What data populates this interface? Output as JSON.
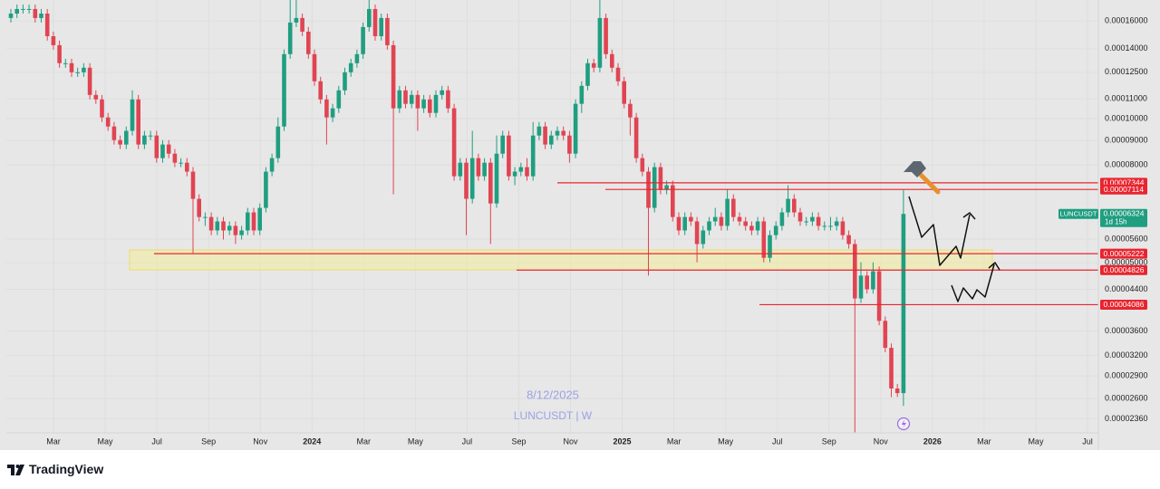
{
  "chart_data": {
    "type": "candlestick",
    "log_scale": true,
    "grid": true,
    "up_color": "#1f9e80",
    "down_color": "#e04452",
    "level_color": "#e8242f",
    "ylim": [
      2.03e-05,
      0.000177
    ],
    "yticks": [
      {
        "value": 0.00016,
        "label": "0.00016000"
      },
      {
        "value": 0.00014,
        "label": "0.00014000"
      },
      {
        "value": 0.000125,
        "label": "0.00012500"
      },
      {
        "value": 0.00011,
        "label": "0.00011000"
      },
      {
        "value": 0.0001,
        "label": "0.00010000"
      },
      {
        "value": 9e-05,
        "label": "0.00009000"
      },
      {
        "value": 8e-05,
        "label": "0.00008000"
      },
      {
        "value": 5.6e-05,
        "label": "0.00005600"
      },
      {
        "value": 5e-05,
        "label": "0.00005000"
      },
      {
        "value": 4.4e-05,
        "label": "0.00004400"
      },
      {
        "value": 3.6e-05,
        "label": "0.00003600"
      },
      {
        "value": 3.2e-05,
        "label": "0.00003200"
      },
      {
        "value": 2.9e-05,
        "label": "0.00002900"
      },
      {
        "value": 2.6e-05,
        "label": "0.00002600"
      },
      {
        "value": 2.36e-05,
        "label": "0.00002360"
      }
    ],
    "x_labels": [
      "Mar",
      "May",
      "Jul",
      "Sep",
      "Nov",
      "2024",
      "Mar",
      "May",
      "Jul",
      "Sep",
      "Nov",
      "2025",
      "Mar",
      "May",
      "Jul",
      "Sep",
      "Nov",
      "2026",
      "Mar",
      "May",
      "Jul"
    ],
    "levels": [
      7.344e-05,
      7.114e-05,
      5.222e-05,
      4.826e-05,
      4.086e-05
    ],
    "symbol": "LUNCUSDT",
    "countdown": "1d 15h",
    "watermark": [
      "8/12/2025",
      "LUNCUSDT | W"
    ],
    "open": [
      0.0001623,
      0.0001658,
      0.0001695,
      0.0001695,
      0.0001695,
      0.0001623,
      0.0001658,
      0.0001487,
      0.0001424,
      0.0001306,
      0.0001306,
      0.000125,
      0.000125,
      0.0001278,
      0.0001121,
      0.0001097,
      0.0001006,
      9.63e-05,
      9.02e-05,
      8.83e-05,
      9.43e-05,
      0.0001097,
      8.83e-05,
      9.22e-05,
      9.22e-05,
      8.27e-05,
      8.83e-05,
      8.45e-05,
      8.09e-05,
      8.09e-05,
      7.75e-05,
      6.8e-05,
      6.23e-05,
      6.23e-05,
      5.84e-05,
      6.1e-05,
      5.84e-05,
      5.97e-05,
      5.71e-05,
      5.84e-05,
      6.37e-05,
      5.84e-05,
      6.51e-05,
      7.75e-05,
      8.27e-05,
      9.63e-05,
      0.0001364,
      0.0001588,
      0.0001623,
      0.000152,
      0.0001364,
      0.0001197,
      0.0001097,
      0.0001006,
      0.0001051,
      0.0001146,
      0.000125,
      0.0001306,
      0.0001364,
      0.0001554,
      0.0001695,
      0.0001487,
      0.0001623,
      0.0001424,
      0.0001051,
      0.0001146,
      0.0001074,
      0.0001121,
      0.0001051,
      0.0001097,
      0.0001028,
      0.0001121,
      0.0001146,
      0.0001051,
      7.58e-05,
      8.09e-05,
      6.8e-05,
      8.27e-05,
      7.58e-05,
      8.09e-05,
      6.65e-05,
      8.45e-05,
      9.22e-05,
      7.58e-05,
      7.75e-05,
      7.92e-05,
      7.58e-05,
      9.22e-05,
      9.63e-05,
      8.83e-05,
      9.22e-05,
      9.43e-05,
      9.22e-05,
      8.45e-05,
      0.0001074,
      0.0001171,
      0.0001306,
      0.0001278,
      0.0001623,
      0.0001364,
      0.0001278,
      0.0001197,
      0.0001074,
      0.0001006,
      8.27e-05,
      7.75e-05,
      6.51e-05,
      7.92e-05,
      7.1e-05,
      7.26e-05,
      6.23e-05,
      5.84e-05,
      6.23e-05,
      6.1e-05,
      5.47e-05,
      5.84e-05,
      6.1e-05,
      6.23e-05,
      5.97e-05,
      6.8e-05,
      6.23e-05,
      6.1e-05,
      5.97e-05,
      5.84e-05,
      6.1e-05,
      5.12e-05,
      5.71e-05,
      5.97e-05,
      6.37e-05,
      6.8e-05,
      6.37e-05,
      6.1e-05,
      6.1e-05,
      6.23e-05,
      5.97e-05,
      5.97e-05,
      5.97e-05,
      6.1e-05,
      5.71e-05,
      5.47e-05,
      4.21e-05,
      4.7e-05,
      4.4e-05,
      4.8e-05,
      3.78e-05,
      3.32e-05,
      2.73e-05,
      2.67e-05
    ],
    "high": [
      0.0001695,
      0.0001732,
      0.0001732,
      0.0001732,
      0.0001732,
      0.0001695,
      0.0001695,
      0.000152,
      0.0001456,
      0.0001334,
      0.0001334,
      0.0001278,
      0.0001306,
      0.0001306,
      0.0001146,
      0.0001121,
      0.0001028,
      9.84e-05,
      9.22e-05,
      9.63e-05,
      0.0001146,
      0.0001121,
      9.43e-05,
      9.43e-05,
      9.43e-05,
      9.02e-05,
      9.02e-05,
      8.64e-05,
      8.27e-05,
      8.27e-05,
      7.92e-05,
      6.95e-05,
      6.37e-05,
      6.37e-05,
      6.23e-05,
      6.23e-05,
      6.1e-05,
      6.1e-05,
      5.97e-05,
      6.51e-05,
      6.51e-05,
      6.65e-05,
      7.92e-05,
      8.45e-05,
      0.0001006,
      0.0001394,
      0.000177,
      0.000177,
      0.0001658,
      0.0001554,
      0.0001394,
      0.0001223,
      0.0001121,
      0.0001074,
      0.0001171,
      0.0001278,
      0.0001334,
      0.0001394,
      0.0001588,
      0.000177,
      0.0001732,
      0.0001658,
      0.0001658,
      0.0001456,
      0.0001171,
      0.0001171,
      0.0001146,
      0.0001146,
      0.0001121,
      0.0001121,
      0.0001146,
      0.0001171,
      0.0001171,
      0.0001074,
      8.27e-05,
      8.27e-05,
      9.43e-05,
      8.45e-05,
      8.27e-05,
      8.27e-05,
      9.22e-05,
      9.43e-05,
      9.43e-05,
      7.92e-05,
      8.09e-05,
      8.27e-05,
      9.84e-05,
      9.84e-05,
      9.84e-05,
      9.43e-05,
      9.63e-05,
      9.63e-05,
      9.43e-05,
      0.0001097,
      0.0001197,
      0.0001334,
      0.0001334,
      0.000177,
      0.0001658,
      0.0001394,
      0.0001306,
      0.0001223,
      0.0001097,
      0.0001028,
      8.45e-05,
      7.92e-05,
      8.09e-05,
      8.09e-05,
      7.42e-05,
      7.42e-05,
      6.37e-05,
      6.37e-05,
      6.37e-05,
      6.23e-05,
      5.97e-05,
      6.23e-05,
      6.51e-05,
      6.37e-05,
      7.1e-05,
      6.95e-05,
      6.37e-05,
      6.23e-05,
      6.1e-05,
      6.23e-05,
      6.23e-05,
      5.84e-05,
      6.1e-05,
      6.51e-05,
      7.26e-05,
      6.95e-05,
      6.51e-05,
      6.23e-05,
      6.37e-05,
      6.37e-05,
      6.1e-05,
      6.23e-05,
      6.23e-05,
      6.23e-05,
      5.84e-05,
      5.59e-05,
      5.01e-05,
      4.8e-05,
      5.01e-05,
      4.91e-05,
      3.86e-05,
      3.39e-05,
      2.79e-05,
      7.1e-05
    ],
    "low": [
      0.0001588,
      0.0001623,
      0.0001658,
      0.0001658,
      0.0001588,
      0.0001588,
      0.0001456,
      0.0001394,
      0.0001278,
      0.0001278,
      0.0001223,
      0.0001223,
      0.0001223,
      0.0001097,
      0.0001074,
      9.84e-05,
      9.43e-05,
      8.83e-05,
      8.64e-05,
      8.64e-05,
      9.22e-05,
      8.64e-05,
      8.64e-05,
      9.02e-05,
      8.09e-05,
      8.09e-05,
      8.27e-05,
      7.92e-05,
      7.92e-05,
      7.58e-05,
      5.24e-05,
      6.1e-05,
      5.97e-05,
      5.71e-05,
      5.71e-05,
      5.59e-05,
      5.71e-05,
      5.47e-05,
      5.59e-05,
      5.71e-05,
      5.71e-05,
      5.71e-05,
      6.37e-05,
      7.58e-05,
      8.09e-05,
      9.43e-05,
      0.0001334,
      0.0001554,
      0.0001487,
      0.0001334,
      0.0001171,
      0.0001074,
      8.83e-05,
      9.84e-05,
      0.0001028,
      0.0001121,
      0.0001223,
      0.0001278,
      0.0001334,
      0.000152,
      0.0001456,
      0.0001456,
      0.0001394,
      6.95e-05,
      0.0001028,
      0.0001051,
      0.0001051,
      9.43e-05,
      0.0001028,
      0.0001006,
      0.0001006,
      0.0001097,
      0.0001028,
      7.42e-05,
      7.42e-05,
      5.71e-05,
      6.65e-05,
      7.42e-05,
      7.42e-05,
      5.47e-05,
      6.51e-05,
      8.27e-05,
      7.42e-05,
      7.26e-05,
      7.58e-05,
      7.42e-05,
      7.42e-05,
      9.02e-05,
      8.64e-05,
      8.64e-05,
      9.02e-05,
      9.02e-05,
      8.09e-05,
      8.27e-05,
      0.0001028,
      0.0001146,
      0.000125,
      0.000125,
      0.0001334,
      0.000125,
      0.0001171,
      0.0001051,
      9.22e-05,
      8.09e-05,
      7.58e-05,
      4.7e-05,
      6.37e-05,
      6.95e-05,
      6.95e-05,
      6.1e-05,
      5.71e-05,
      5.71e-05,
      5.97e-05,
      5.01e-05,
      5.35e-05,
      5.71e-05,
      5.97e-05,
      5.84e-05,
      5.84e-05,
      6.1e-05,
      5.97e-05,
      5.84e-05,
      5.71e-05,
      5.71e-05,
      5.01e-05,
      5.01e-05,
      5.59e-05,
      5.84e-05,
      6.23e-05,
      6.23e-05,
      5.97e-05,
      5.97e-05,
      5.97e-05,
      5.84e-05,
      5.84e-05,
      5.84e-05,
      5.84e-05,
      5.59e-05,
      5.35e-05,
      2.2e-05,
      4.12e-05,
      4.31e-05,
      4.31e-05,
      3.7e-05,
      3.25e-05,
      2.62e-05,
      2.62e-05,
      2.51e-05
    ],
    "close": [
      0.0001658,
      0.0001695,
      0.0001695,
      0.0001695,
      0.0001623,
      0.0001658,
      0.0001487,
      0.0001424,
      0.0001306,
      0.0001306,
      0.000125,
      0.000125,
      0.0001278,
      0.0001121,
      0.0001097,
      0.0001006,
      9.63e-05,
      9.02e-05,
      8.83e-05,
      9.43e-05,
      0.0001097,
      8.83e-05,
      9.22e-05,
      9.22e-05,
      8.27e-05,
      8.83e-05,
      8.45e-05,
      8.09e-05,
      8.09e-05,
      7.75e-05,
      6.8e-05,
      6.23e-05,
      6.23e-05,
      5.84e-05,
      6.1e-05,
      5.84e-05,
      5.97e-05,
      5.71e-05,
      5.84e-05,
      6.37e-05,
      5.84e-05,
      6.51e-05,
      7.75e-05,
      8.27e-05,
      9.63e-05,
      0.0001364,
      0.0001588,
      0.0001623,
      0.000152,
      0.0001364,
      0.0001197,
      0.0001097,
      0.0001006,
      0.0001051,
      0.0001146,
      0.000125,
      0.0001306,
      0.0001364,
      0.0001554,
      0.0001695,
      0.0001487,
      0.0001623,
      0.0001424,
      0.0001051,
      0.0001146,
      0.0001074,
      0.0001121,
      0.0001051,
      0.0001097,
      0.0001028,
      0.0001121,
      0.0001146,
      0.0001051,
      7.58e-05,
      8.09e-05,
      6.8e-05,
      8.27e-05,
      7.58e-05,
      8.09e-05,
      6.65e-05,
      8.45e-05,
      9.22e-05,
      7.58e-05,
      7.75e-05,
      7.92e-05,
      7.58e-05,
      9.22e-05,
      9.63e-05,
      8.83e-05,
      9.22e-05,
      9.43e-05,
      9.22e-05,
      8.45e-05,
      0.0001074,
      0.0001171,
      0.0001306,
      0.0001278,
      0.0001623,
      0.0001364,
      0.0001278,
      0.0001197,
      0.0001074,
      0.0001006,
      8.27e-05,
      7.75e-05,
      6.51e-05,
      7.92e-05,
      7.1e-05,
      7.26e-05,
      6.23e-05,
      5.84e-05,
      6.23e-05,
      6.1e-05,
      5.47e-05,
      5.84e-05,
      6.1e-05,
      6.23e-05,
      5.97e-05,
      6.8e-05,
      6.23e-05,
      6.1e-05,
      5.97e-05,
      5.84e-05,
      6.1e-05,
      5.12e-05,
      5.71e-05,
      5.97e-05,
      6.37e-05,
      6.8e-05,
      6.37e-05,
      6.1e-05,
      6.1e-05,
      6.23e-05,
      5.97e-05,
      5.97e-05,
      5.97e-05,
      6.1e-05,
      5.71e-05,
      5.47e-05,
      4.21e-05,
      4.7e-05,
      4.4e-05,
      4.8e-05,
      3.78e-05,
      3.32e-05,
      2.73e-05,
      2.67e-05,
      6.324e-05
    ]
  },
  "footer": {
    "brand": "TradingView"
  }
}
